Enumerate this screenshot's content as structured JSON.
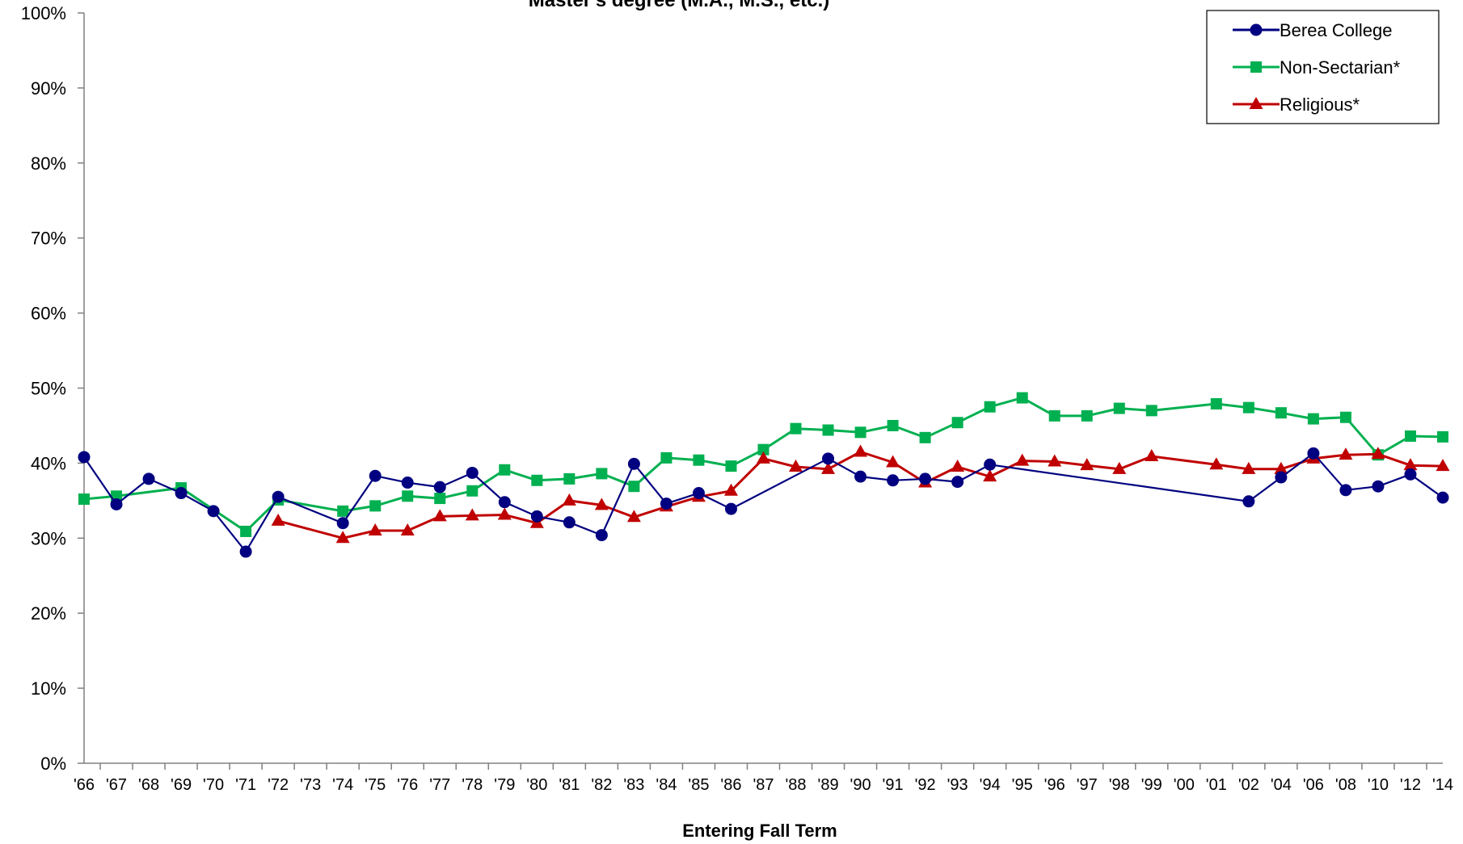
{
  "chart_data": {
    "type": "line",
    "title": "Master's degree (M.A., M.S., etc.)",
    "xlabel": "Entering Fall Term",
    "ylabel": "",
    "ylim": [
      0,
      100
    ],
    "y_ticks": [
      "0%",
      "10%",
      "20%",
      "30%",
      "40%",
      "50%",
      "60%",
      "70%",
      "80%",
      "90%",
      "100%"
    ],
    "x": [
      "'66",
      "'67",
      "'68",
      "'69",
      "'70",
      "'71",
      "'72",
      "'73",
      "'74",
      "'75",
      "'76",
      "'77",
      "'78",
      "'79",
      "'80",
      "'81",
      "'82",
      "'83",
      "'84",
      "'85",
      "'86",
      "'87",
      "'88",
      "'89",
      "'90",
      "'91",
      "'92",
      "'93",
      "'94",
      "'95",
      "'96",
      "'97",
      "'98",
      "'99",
      "'00",
      "'01",
      "'02",
      "'04",
      "'06",
      "'08",
      "'10",
      "'12",
      "'14"
    ],
    "grid": false,
    "legend_position": "top-right",
    "series": [
      {
        "name": "Berea College",
        "color": "#000080",
        "marker": "circle",
        "values": [
          40.8,
          34.5,
          37.9,
          36.0,
          33.6,
          28.2,
          35.5,
          null,
          32.0,
          38.3,
          37.4,
          36.8,
          38.7,
          34.8,
          32.9,
          32.1,
          30.4,
          39.9,
          34.6,
          36.0,
          33.9,
          null,
          null,
          40.6,
          38.2,
          37.7,
          37.9,
          37.5,
          39.8,
          null,
          null,
          null,
          null,
          null,
          null,
          null,
          34.9,
          38.1,
          41.3,
          36.4,
          36.9,
          38.5,
          35.4
        ]
      },
      {
        "name": "Non-Sectarian*",
        "color": "#00B050",
        "marker": "square",
        "values": [
          35.2,
          35.6,
          null,
          36.7,
          null,
          30.9,
          35.1,
          null,
          33.6,
          34.3,
          35.6,
          35.3,
          36.3,
          39.1,
          37.7,
          37.9,
          38.6,
          36.9,
          40.7,
          40.4,
          39.6,
          41.8,
          44.6,
          44.4,
          44.1,
          45.0,
          43.4,
          45.4,
          47.5,
          48.7,
          46.3,
          46.3,
          47.3,
          47.0,
          null,
          47.9,
          47.4,
          46.7,
          45.9,
          46.1,
          41.1,
          43.6,
          43.5
        ]
      },
      {
        "name": "Religious*",
        "color": "#C00000",
        "marker": "triangle",
        "values": [
          null,
          null,
          null,
          null,
          null,
          null,
          32.3,
          null,
          30.0,
          31.0,
          31.0,
          32.9,
          33.0,
          33.1,
          32.0,
          35.0,
          34.4,
          32.8,
          34.2,
          35.5,
          36.3,
          40.6,
          39.5,
          39.2,
          41.5,
          40.1,
          37.4,
          39.5,
          38.2,
          40.3,
          40.2,
          39.7,
          39.2,
          40.9,
          null,
          39.8,
          39.2,
          39.2,
          40.6,
          41.1,
          41.2,
          39.7,
          39.6
        ]
      }
    ]
  }
}
